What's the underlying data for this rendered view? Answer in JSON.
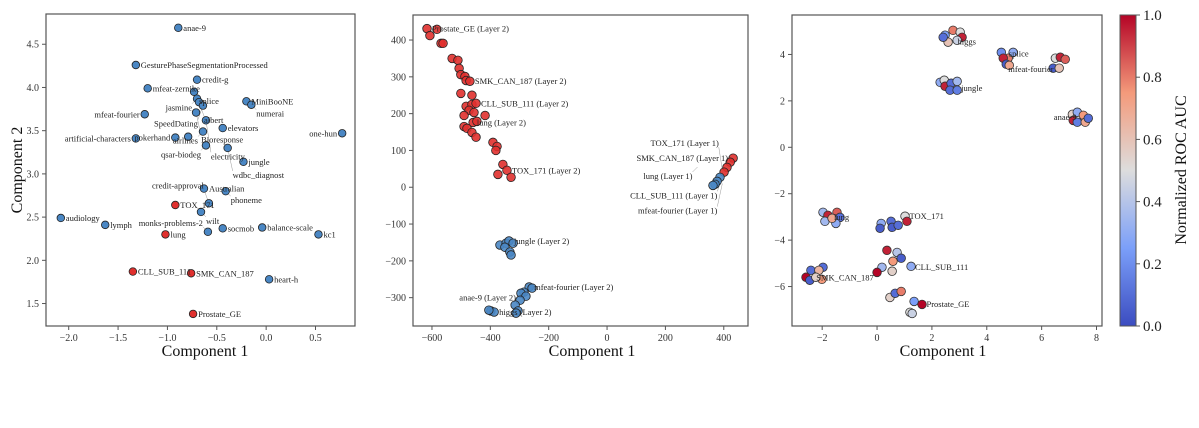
{
  "chart_data": [
    {
      "type": "scatter",
      "xlabel": "Component 1",
      "ylabel": "Component 2",
      "xlim": [
        -2.23,
        0.9
      ],
      "ylim": [
        1.24,
        4.85
      ],
      "xticks": [
        "−2.0",
        "−1.5",
        "−1.0",
        "−0.5",
        "0.0",
        "0.5"
      ],
      "xtick_values": [
        -2.0,
        -1.5,
        -1.0,
        -0.5,
        0.0,
        0.5
      ],
      "yticks": [
        "1.5",
        "2.0",
        "2.5",
        "3.0",
        "3.5",
        "4.0",
        "4.5"
      ],
      "ytick_values": [
        1.5,
        2.0,
        2.5,
        3.0,
        3.5,
        4.0,
        4.5
      ],
      "grid": false,
      "colors": {
        "benchmark": "#4a87c4",
        "cancer": "#e0302e"
      },
      "points": [
        {
          "label": "anae-9",
          "x": -0.89,
          "y": 4.69,
          "group": "benchmark"
        },
        {
          "label": "GesturePhaseSegmentationProcessed",
          "x": -1.32,
          "y": 4.26,
          "group": "benchmark"
        },
        {
          "label": "credit-g",
          "x": -0.7,
          "y": 4.09,
          "group": "benchmark"
        },
        {
          "label": "mfeat-zernike",
          "x": -1.2,
          "y": 3.99,
          "group": "benchmark"
        },
        {
          "label": "splice",
          "x": -0.73,
          "y": 3.95,
          "group": "benchmark"
        },
        {
          "label": "jasmine",
          "x": -0.7,
          "y": 3.87,
          "group": "benchmark"
        },
        {
          "label": "albert",
          "x": -0.68,
          "y": 3.83,
          "group": "benchmark"
        },
        {
          "label": "SpeedDating",
          "x": -0.64,
          "y": 3.79,
          "group": "benchmark"
        },
        {
          "label": "MiniBooNE",
          "x": -0.2,
          "y": 3.84,
          "group": "benchmark"
        },
        {
          "label": "numerai",
          "x": -0.15,
          "y": 3.8,
          "group": "benchmark"
        },
        {
          "label": "Bioresponse",
          "x": -0.71,
          "y": 3.71,
          "group": "benchmark"
        },
        {
          "label": "mfeat-fourier",
          "x": -1.23,
          "y": 3.69,
          "group": "benchmark"
        },
        {
          "label": "electricity",
          "x": -0.61,
          "y": 3.62,
          "group": "benchmark"
        },
        {
          "label": "airlines",
          "x": -0.64,
          "y": 3.49,
          "group": "benchmark"
        },
        {
          "label": "elevators",
          "x": -0.44,
          "y": 3.53,
          "group": "benchmark"
        },
        {
          "label": "one-hun",
          "x": 0.77,
          "y": 3.47,
          "group": "benchmark"
        },
        {
          "label": "artificial-characters",
          "x": -1.32,
          "y": 3.41,
          "group": "benchmark"
        },
        {
          "label": "pokerhand",
          "x": -0.92,
          "y": 3.42,
          "group": "benchmark"
        },
        {
          "label": "",
          "x": -0.79,
          "y": 3.43,
          "group": "benchmark"
        },
        {
          "label": "qsar-biodeg",
          "x": -0.61,
          "y": 3.33,
          "group": "benchmark"
        },
        {
          "label": "wdbc_diagnost",
          "x": -0.39,
          "y": 3.3,
          "group": "benchmark"
        },
        {
          "label": "jungle",
          "x": -0.23,
          "y": 3.14,
          "group": "benchmark"
        },
        {
          "label": "Australian",
          "x": -0.63,
          "y": 2.83,
          "group": "benchmark"
        },
        {
          "label": "phoneme",
          "x": -0.41,
          "y": 2.8,
          "group": "benchmark"
        },
        {
          "label": "TOX_171",
          "x": -0.92,
          "y": 2.64,
          "group": "cancer"
        },
        {
          "label": "credit-approval",
          "x": -0.58,
          "y": 2.66,
          "group": "benchmark"
        },
        {
          "label": "wilt",
          "x": -0.66,
          "y": 2.56,
          "group": "benchmark"
        },
        {
          "label": "audiology",
          "x": -2.08,
          "y": 2.49,
          "group": "benchmark"
        },
        {
          "label": "lymph",
          "x": -1.63,
          "y": 2.41,
          "group": "benchmark"
        },
        {
          "label": "lung",
          "x": -1.02,
          "y": 2.3,
          "group": "cancer"
        },
        {
          "label": "monks-problems-2",
          "x": -0.59,
          "y": 2.33,
          "group": "benchmark"
        },
        {
          "label": "socmob",
          "x": -0.44,
          "y": 2.37,
          "group": "benchmark"
        },
        {
          "label": "balance-scale",
          "x": -0.04,
          "y": 2.38,
          "group": "benchmark"
        },
        {
          "label": "kc1",
          "x": 0.53,
          "y": 2.3,
          "group": "benchmark"
        },
        {
          "label": "CLL_SUB_111",
          "x": -1.35,
          "y": 1.87,
          "group": "cancer"
        },
        {
          "label": "SMK_CAN_187",
          "x": -0.76,
          "y": 1.85,
          "group": "cancer"
        },
        {
          "label": "heart-h",
          "x": 0.03,
          "y": 1.78,
          "group": "benchmark"
        },
        {
          "label": "Prostate_GE",
          "x": -0.74,
          "y": 1.38,
          "group": "cancer"
        }
      ]
    },
    {
      "type": "scatter",
      "xlabel": "Component 1",
      "ylabel": "",
      "xlim": [
        -665,
        483
      ],
      "ylim": [
        -377,
        468
      ],
      "xticks": [
        "−600",
        "−400",
        "−200",
        "0",
        "200",
        "400"
      ],
      "xtick_values": [
        -600,
        -400,
        -200,
        0,
        200,
        400
      ],
      "yticks": [
        "−300",
        "−200",
        "−100",
        "0",
        "100",
        "200",
        "300",
        "400"
      ],
      "ytick_values": [
        -300,
        -200,
        -100,
        0,
        100,
        200,
        300,
        400
      ],
      "grid": false,
      "colors": {
        "benchmark": "#4a87c4",
        "cancer": "#e0302e"
      },
      "series": [
        {
          "group": "cancer",
          "x": [
            -617,
            -607,
            -583,
            -569,
            -562,
            -531,
            -511,
            -507,
            -501,
            -487,
            -483,
            -470,
            -501,
            -463,
            -483,
            -463,
            -449,
            -473,
            -456,
            -490,
            -418,
            -459,
            -446,
            -490,
            -480,
            -463,
            -449,
            -391,
            -377,
            -381,
            -357,
            -343,
            -374,
            -329,
            432,
            422,
            411,
            401
          ],
          "y": [
            431,
            412,
            429,
            391,
            391,
            350,
            345,
            323,
            306,
            301,
            290,
            288,
            255,
            250,
            220,
            225,
            228,
            209,
            203,
            195,
            195,
            176,
            179,
            165,
            160,
            149,
            136,
            122,
            111,
            100,
            62,
            46,
            35,
            27,
            79,
            68,
            54,
            41
          ]
        },
        {
          "group": "benchmark",
          "x": [
            -367,
            -346,
            -336,
            -350,
            -322,
            -333,
            -329,
            -267,
            -257,
            -285,
            -295,
            -278,
            -298,
            -315,
            -305,
            -312,
            -398,
            -387,
            -405,
            387,
            377,
            370,
            363
          ],
          "y": [
            -157,
            -152,
            -146,
            -163,
            -152,
            -176,
            -184,
            -271,
            -274,
            -285,
            -288,
            -296,
            -307,
            -320,
            -336,
            -342,
            -336,
            -339,
            -334,
            27,
            16,
            8,
            5
          ]
        }
      ],
      "annotations": [
        {
          "text": "Prostate_GE (Layer 2)",
          "x": -617,
          "y": 431
        },
        {
          "text": "SMK_CAN_187 (Layer 2)",
          "x": -470,
          "y": 288
        },
        {
          "text": "CLL_SUB_111 (Layer 2)",
          "x": -449,
          "y": 228
        },
        {
          "text": "lung (Layer 2)",
          "x": -463,
          "y": 176
        },
        {
          "text": "TOX_171 (Layer 2)",
          "x": -343,
          "y": 46
        },
        {
          "text": "SMK_CAN_187 (Layer 1)",
          "x": 432,
          "y": 79,
          "anchor": "end"
        },
        {
          "text": "lung (Layer 1)",
          "x": 310,
          "y": 55,
          "anchor": "end"
        },
        {
          "text": "CLL_SUB_111 (Layer 1)",
          "x": 395,
          "y": 27,
          "anchor": "end"
        },
        {
          "text": "TOX_171 (Layer 1)",
          "x": 400,
          "y": 22,
          "anchor": "end"
        },
        {
          "text": "mfeat-fourier (Layer 1)",
          "x": 395,
          "y": 10,
          "anchor": "end"
        },
        {
          "text": "jungle (Layer 2)",
          "x": -336,
          "y": -146
        },
        {
          "text": "mfeat-fourier (Layer 2)",
          "x": -267,
          "y": -271
        },
        {
          "text": "anae-9 (Layer 2)",
          "x": -295,
          "y": -300
        },
        {
          "text": "higgs (Layer 2)",
          "x": -387,
          "y": -339
        }
      ]
    },
    {
      "type": "scatter",
      "xlabel": "Component 1",
      "ylabel": "",
      "xlim": [
        -3.1,
        8.2
      ],
      "ylim": [
        -7.7,
        5.7
      ],
      "xticks": [
        "−2",
        "0",
        "2",
        "4",
        "6",
        "8"
      ],
      "xtick_values": [
        -2,
        0,
        2,
        4,
        6,
        8
      ],
      "yticks": [
        "−6",
        "−4",
        "−2",
        "0",
        "2",
        "4"
      ],
      "ytick_values": [
        -6,
        -4,
        -2,
        0,
        2,
        4
      ],
      "grid": false,
      "colormap": "coolwarm",
      "colorbar": {
        "label": "Normalized ROC AUC",
        "range": [
          0,
          1
        ],
        "ticks": [
          "0.0",
          "0.2",
          "0.4",
          "0.6",
          "0.8",
          "1.0"
        ],
        "tick_values": [
          0,
          0.2,
          0.4,
          0.6,
          0.8,
          1.0
        ],
        "low_color": "#3b4cc0",
        "mid_color": "#dddddd",
        "high_color": "#b40426"
      },
      "points": {
        "x": [
          2.48,
          2.77,
          3.03,
          3.1,
          2.59,
          2.92,
          2.41,
          4.53,
          4.78,
          4.96,
          4.6,
          4.71,
          4.82,
          6.5,
          6.68,
          6.86,
          6.42,
          6.64,
          2.3,
          2.45,
          2.48,
          2.7,
          2.92,
          2.66,
          2.92,
          7.12,
          7.3,
          7.52,
          7.15,
          7.3,
          7.59,
          7.7,
          -1.97,
          -1.79,
          -1.46,
          -1.35,
          -1.9,
          -1.5,
          -1.64,
          0.15,
          0.11,
          0.51,
          0.55,
          0.77,
          1.02,
          1.09,
          0.36,
          0.73,
          0.88,
          0.58,
          0.18,
          0.55,
          0.0,
          1.24,
          -2.41,
          -1.97,
          -2.12,
          -2.59,
          -2.45,
          -2.01,
          -2.23,
          0.47,
          0.66,
          0.88,
          1.35,
          1.64,
          1.2,
          1.28
        ],
        "y": [
          4.83,
          5.04,
          4.96,
          4.74,
          4.53,
          4.61,
          4.74,
          4.09,
          3.84,
          4.09,
          3.84,
          3.58,
          3.53,
          3.84,
          3.88,
          3.79,
          3.41,
          3.41,
          2.8,
          2.89,
          2.63,
          2.76,
          2.84,
          2.46,
          2.46,
          1.42,
          1.51,
          1.38,
          1.16,
          1.08,
          1.08,
          1.25,
          -2.8,
          -2.93,
          -2.8,
          -3.02,
          -3.19,
          -3.28,
          -3.06,
          -3.28,
          -3.49,
          -3.19,
          -3.45,
          -3.36,
          -2.97,
          -3.19,
          -4.44,
          -4.53,
          -4.78,
          -4.91,
          -5.17,
          -5.34,
          -5.39,
          -5.13,
          -5.3,
          -5.17,
          -5.3,
          -5.6,
          -5.73,
          -5.69,
          -5.6,
          -6.47,
          -6.29,
          -6.21,
          -6.64,
          -6.77,
          -7.11,
          -7.16
        ],
        "value": [
          0.25,
          0.8,
          0.5,
          0.95,
          0.6,
          0.45,
          0.1,
          0.2,
          0.8,
          0.3,
          0.95,
          0.05,
          0.7,
          0.5,
          0.95,
          0.85,
          0.05,
          0.6,
          0.3,
          0.5,
          0.95,
          0.1,
          0.35,
          0.1,
          0.15,
          0.55,
          0.3,
          0.75,
          0.95,
          0.15,
          0.7,
          0.1,
          0.35,
          0.95,
          0.85,
          0.1,
          0.35,
          0.3,
          0.7,
          0.3,
          0.05,
          0.1,
          0.05,
          0.1,
          0.5,
          0.95,
          0.95,
          0.4,
          0.05,
          0.75,
          0.35,
          0.55,
          1.0,
          0.3,
          0.1,
          0.1,
          0.65,
          1.0,
          0.05,
          0.75,
          0.55,
          0.55,
          0.1,
          0.8,
          0.25,
          1.0,
          0.5,
          0.45
        ]
      },
      "annotations": [
        {
          "text": "higgs",
          "x": 2.75,
          "y": 4.55
        },
        {
          "text": "splice",
          "x": 4.62,
          "y": 4.05
        },
        {
          "text": "mfeat-fourier",
          "x": 6.62,
          "y": 3.38
        },
        {
          "text": "jungle",
          "x": 2.88,
          "y": 2.55
        },
        {
          "text": "anae-9",
          "x": 7.45,
          "y": 1.3
        },
        {
          "text": "lung",
          "x": -1.75,
          "y": -3.0
        },
        {
          "text": "TOX_171",
          "x": 1.0,
          "y": -2.95
        },
        {
          "text": "CLL_SUB_111",
          "x": 1.2,
          "y": -5.15
        },
        {
          "text": "SMK_CAN_187",
          "x": -2.4,
          "y": -5.6
        },
        {
          "text": "Prostate_GE",
          "x": 1.62,
          "y": -6.75
        }
      ]
    }
  ]
}
